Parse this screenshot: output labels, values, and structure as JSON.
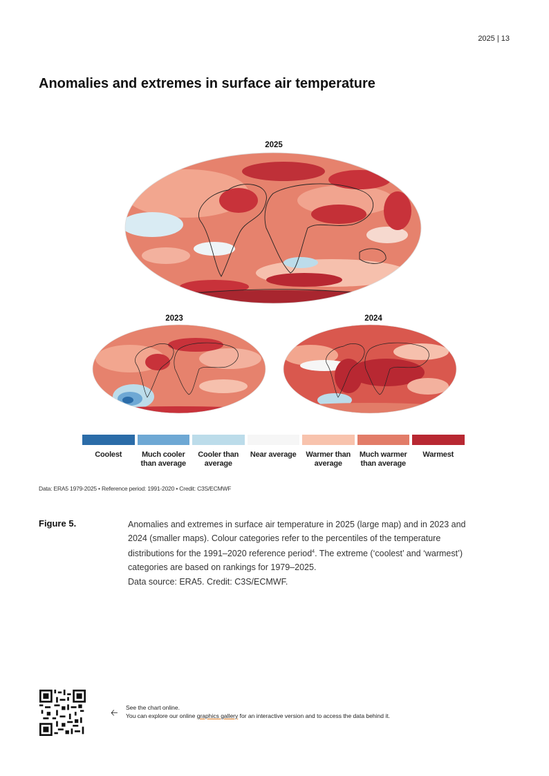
{
  "header": {
    "page_number": "2025 | 13"
  },
  "title": "Anomalies and extremes in surface air temperature",
  "maps": [
    {
      "year": "2025"
    },
    {
      "year": "2023"
    },
    {
      "year": "2024"
    }
  ],
  "legend": {
    "items": [
      {
        "label": "Coolest",
        "color": "#2b6ca8"
      },
      {
        "label": "Much cooler than average",
        "color": "#6ea8d4"
      },
      {
        "label": "Cooler than average",
        "color": "#bcdcea"
      },
      {
        "label": "Near average",
        "color": "#f6f6f6"
      },
      {
        "label": "Warmer than average",
        "color": "#f8c3ad"
      },
      {
        "label": "Much warmer than average",
        "color": "#e27c68"
      },
      {
        "label": "Warmest",
        "color": "#b82832"
      }
    ]
  },
  "credit": "Data: ERA5 1979-2025 • Reference period: 1991-2020 • Credit: C3S/ECMWF",
  "figure": {
    "label": "Figure 5.",
    "caption_part1": "Anomalies and extremes in surface air temperature in 2025 (large map) and in 2023 and 2024 (smaller maps). Colour categories refer to the percentiles of the temperature distributions for the 1991–2020 reference period",
    "caption_footnote": "4",
    "caption_part2": ". The extreme (‘coolest’ and ‘warmest’) categories are based on rankings for 1979–2025.",
    "data_source": "Data source: ERA5. Credit: C3S/ECMWF."
  },
  "online": {
    "title": "See the chart online.",
    "text_before": "You can explore our online ",
    "link": "graphics gallery",
    "text_after": " for an interactive version and to access the data behind it."
  }
}
